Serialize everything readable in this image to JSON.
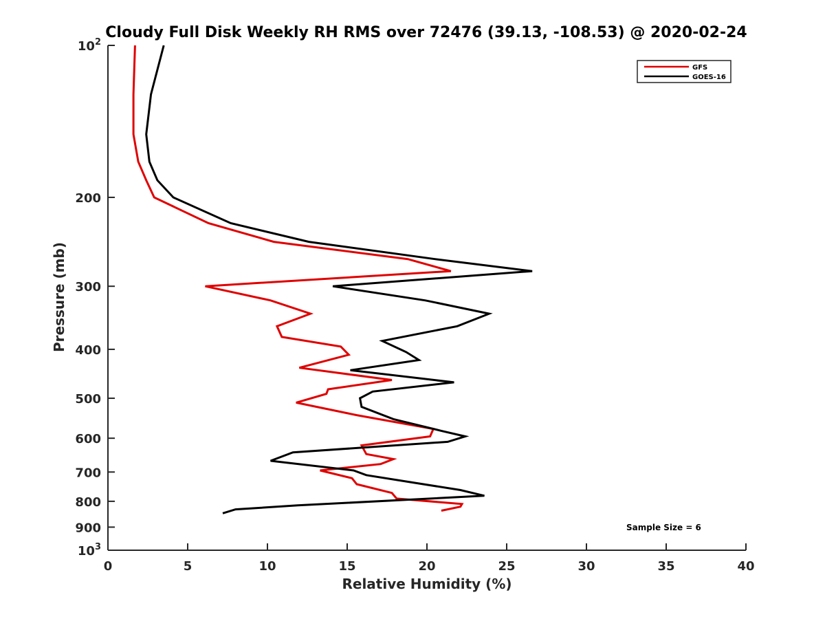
{
  "chart_data": {
    "type": "line",
    "title": "Cloudy Full Disk Weekly RH RMS over 72476 (39.13, -108.53) @ 2020-02-24",
    "xlabel": "Relative Humidity (%)",
    "ylabel": "Pressure (mb)",
    "xlim": [
      0,
      40
    ],
    "ylim": [
      100,
      1000
    ],
    "yscale": "log",
    "y_reversed": true,
    "grid": false,
    "legend_position": "top-right",
    "x_ticks": [
      "0",
      "5",
      "10",
      "15",
      "20",
      "25",
      "30",
      "35",
      "40"
    ],
    "y_ticks": [
      {
        "value": 100,
        "base": "10",
        "exp": "2"
      },
      {
        "value": 200,
        "label": "200"
      },
      {
        "value": 300,
        "label": "300"
      },
      {
        "value": 400,
        "label": "400"
      },
      {
        "value": 500,
        "label": "500"
      },
      {
        "value": 600,
        "label": "600"
      },
      {
        "value": 700,
        "label": "700"
      },
      {
        "value": 800,
        "label": "800"
      },
      {
        "value": 900,
        "label": "900"
      },
      {
        "value": 1000,
        "base": "10",
        "exp": "3"
      }
    ],
    "annotation": "Sample Size = 6",
    "series": [
      {
        "name": "GFS",
        "color": "#e00000",
        "points": [
          [
            1.7,
            100
          ],
          [
            1.6,
            125
          ],
          [
            1.6,
            150
          ],
          [
            1.9,
            170
          ],
          [
            2.4,
            185
          ],
          [
            2.9,
            200
          ],
          [
            6.3,
            225
          ],
          [
            10.4,
            245
          ],
          [
            18.8,
            265
          ],
          [
            21.5,
            280
          ],
          [
            6.1,
            300
          ],
          [
            10.2,
            320
          ],
          [
            12.7,
            340
          ],
          [
            10.6,
            360
          ],
          [
            10.9,
            378
          ],
          [
            14.6,
            395
          ],
          [
            15.1,
            410
          ],
          [
            12.0,
            435
          ],
          [
            17.8,
            460
          ],
          [
            13.8,
            480
          ],
          [
            13.7,
            490
          ],
          [
            11.8,
            510
          ],
          [
            15.6,
            540
          ],
          [
            20.4,
            575
          ],
          [
            20.2,
            595
          ],
          [
            15.9,
            620
          ],
          [
            16.2,
            645
          ],
          [
            17.9,
            660
          ],
          [
            17.1,
            675
          ],
          [
            13.3,
            695
          ],
          [
            15.3,
            720
          ],
          [
            15.6,
            740
          ],
          [
            17.8,
            770
          ],
          [
            18.1,
            790
          ],
          [
            22.2,
            810
          ],
          [
            22.1,
            820
          ],
          [
            20.9,
            835
          ]
        ]
      },
      {
        "name": "GOES-16",
        "color": "#000000",
        "points": [
          [
            3.5,
            100
          ],
          [
            2.7,
            125
          ],
          [
            2.4,
            150
          ],
          [
            2.6,
            170
          ],
          [
            3.1,
            185
          ],
          [
            4.1,
            200
          ],
          [
            7.7,
            225
          ],
          [
            12.6,
            245
          ],
          [
            20.5,
            265
          ],
          [
            26.6,
            280
          ],
          [
            14.1,
            300
          ],
          [
            19.9,
            320
          ],
          [
            23.9,
            340
          ],
          [
            21.9,
            360
          ],
          [
            17.2,
            385
          ],
          [
            18.7,
            405
          ],
          [
            19.5,
            420
          ],
          [
            15.2,
            440
          ],
          [
            21.7,
            465
          ],
          [
            16.6,
            485
          ],
          [
            15.8,
            500
          ],
          [
            15.9,
            520
          ],
          [
            17.9,
            550
          ],
          [
            20.9,
            580
          ],
          [
            22.4,
            595
          ],
          [
            21.3,
            610
          ],
          [
            11.6,
            640
          ],
          [
            10.2,
            665
          ],
          [
            15.4,
            695
          ],
          [
            16.2,
            710
          ],
          [
            19.2,
            735
          ],
          [
            22.1,
            760
          ],
          [
            23.6,
            780
          ],
          [
            11.9,
            815
          ],
          [
            8.0,
            830
          ],
          [
            7.2,
            845
          ]
        ]
      }
    ]
  }
}
